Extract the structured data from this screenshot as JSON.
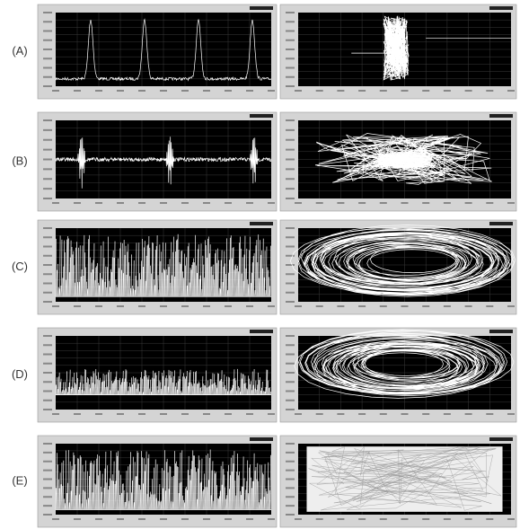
{
  "panels": [
    {
      "label": "(A)"
    },
    {
      "label": "(B)"
    },
    {
      "label": "(C)"
    },
    {
      "label": "(D)"
    },
    {
      "label": "(E)"
    }
  ]
}
